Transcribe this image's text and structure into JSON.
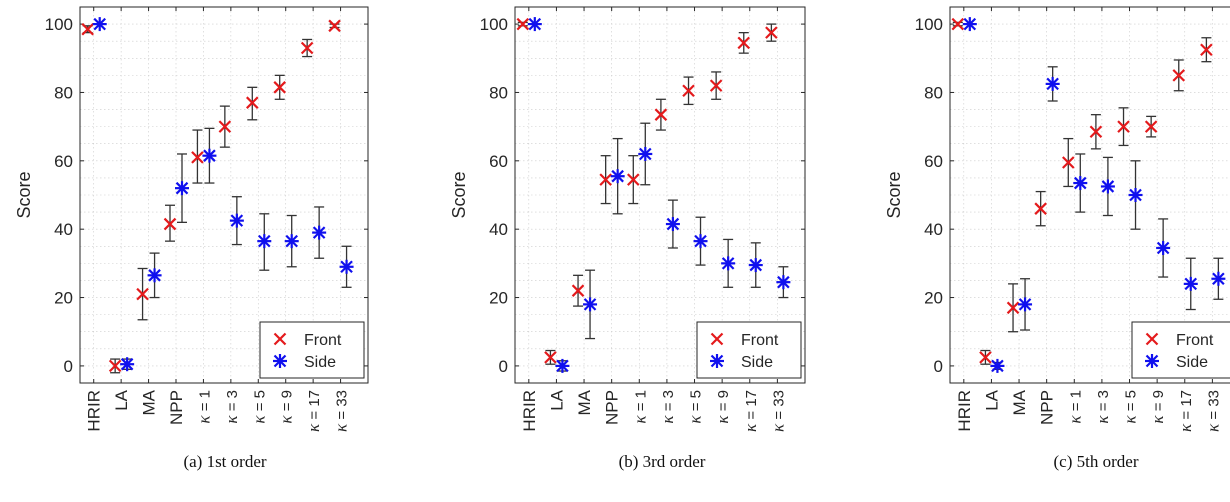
{
  "figure": {
    "captions": [
      "(a) 1st order",
      "(b) 3rd order",
      "(c) 5th order"
    ]
  },
  "colors": {
    "front": "#e41a1c",
    "side": "#1010ee",
    "errorbar": "#333333",
    "grid": "#cccccc"
  },
  "chart_data": [
    {
      "type": "scatter",
      "title": "",
      "xlabel": "",
      "ylabel": "Score",
      "ylim": [
        -5,
        105
      ],
      "yticks": [
        0,
        20,
        40,
        60,
        80,
        100
      ],
      "categories": [
        "HRIR",
        "LA",
        "MA",
        "NPP",
        "κ = 1",
        "κ = 3",
        "κ = 5",
        "κ = 9",
        "κ = 17",
        "κ = 33"
      ],
      "grid": true,
      "legend_position": "bottom-right",
      "series": [
        {
          "name": "Front",
          "marker": "x",
          "values": [
            98.5,
            0,
            21,
            41.5,
            61,
            70,
            77,
            81.5,
            93,
            99.5
          ],
          "err_low": [
            1,
            2,
            7.5,
            5,
            7.5,
            6,
            5,
            3.5,
            2.5,
            0.5
          ],
          "err_high": [
            1,
            2,
            7.5,
            5.5,
            8,
            6,
            4.5,
            3.5,
            2.5,
            0.5
          ]
        },
        {
          "name": "Side",
          "marker": "*",
          "values": [
            100,
            0.5,
            26.5,
            52,
            61.5,
            42.5,
            36.5,
            36.5,
            39,
            29
          ],
          "err_low": [
            0,
            1.5,
            6.5,
            10,
            8,
            7,
            8.5,
            7.5,
            7.5,
            6
          ],
          "err_high": [
            0,
            1.5,
            6.5,
            10,
            8,
            7,
            8,
            7.5,
            7.5,
            6
          ]
        }
      ]
    },
    {
      "type": "scatter",
      "title": "",
      "xlabel": "",
      "ylabel": "Score",
      "ylim": [
        -5,
        105
      ],
      "yticks": [
        0,
        20,
        40,
        60,
        80,
        100
      ],
      "categories": [
        "HRIR",
        "LA",
        "MA",
        "NPP",
        "κ = 1",
        "κ = 3",
        "κ = 5",
        "κ = 9",
        "κ = 17",
        "κ = 33"
      ],
      "grid": true,
      "legend_position": "bottom-right",
      "series": [
        {
          "name": "Front",
          "marker": "x",
          "values": [
            100,
            2.5,
            22,
            54.5,
            54.5,
            73.5,
            80.5,
            82,
            94.5,
            97.5
          ],
          "err_low": [
            0.5,
            2,
            4.5,
            7,
            7,
            4.5,
            4,
            4,
            3,
            2.5
          ],
          "err_high": [
            0.5,
            2,
            4.5,
            7,
            7,
            4.5,
            4,
            4,
            3,
            2.5
          ]
        },
        {
          "name": "Side",
          "marker": "*",
          "values": [
            100,
            0,
            18,
            55.5,
            62,
            41.5,
            36.5,
            30,
            29.5,
            24.5
          ],
          "err_low": [
            0,
            1.5,
            10,
            11,
            9,
            7,
            7,
            7,
            6.5,
            4.5
          ],
          "err_high": [
            0,
            1.5,
            10,
            11,
            9,
            7,
            7,
            7,
            6.5,
            4.5
          ]
        }
      ]
    },
    {
      "type": "scatter",
      "title": "",
      "xlabel": "",
      "ylabel": "Score",
      "ylim": [
        -5,
        105
      ],
      "yticks": [
        0,
        20,
        40,
        60,
        80,
        100
      ],
      "categories": [
        "HRIR",
        "LA",
        "MA",
        "NPP",
        "κ = 1",
        "κ = 3",
        "κ = 5",
        "κ = 9",
        "κ = 17",
        "κ = 33"
      ],
      "grid": true,
      "legend_position": "bottom-right",
      "series": [
        {
          "name": "Front",
          "marker": "x",
          "values": [
            100,
            2.5,
            17,
            46,
            59.5,
            68.5,
            70,
            70,
            85,
            92.5
          ],
          "err_low": [
            0.5,
            2,
            7,
            5,
            7,
            5,
            5.5,
            3,
            4.5,
            3.5
          ],
          "err_high": [
            0.5,
            2,
            7,
            5,
            7,
            5,
            5.5,
            3,
            4.5,
            3.5
          ]
        },
        {
          "name": "Side",
          "marker": "*",
          "values": [
            100,
            0,
            18,
            82.5,
            53.5,
            52.5,
            50,
            34.5,
            24,
            25.5
          ],
          "err_low": [
            0,
            1,
            7.5,
            5,
            8.5,
            8.5,
            10,
            8.5,
            7.5,
            6
          ],
          "err_high": [
            0,
            1,
            7.5,
            5,
            8.5,
            8.5,
            10,
            8.5,
            7.5,
            6
          ]
        }
      ]
    }
  ]
}
